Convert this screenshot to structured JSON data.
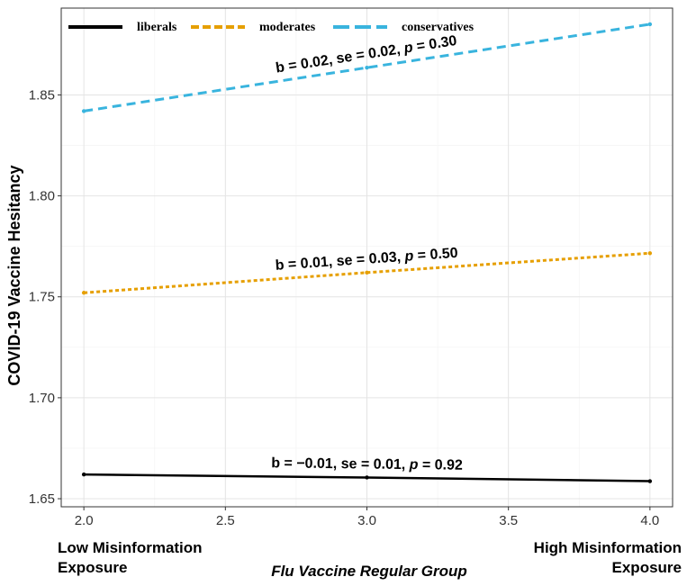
{
  "chart_data": {
    "type": "line",
    "title": "",
    "xlabel": "Flu Vaccine Regular Group",
    "ylabel": "COVID-19 Vaccine Hesitancy",
    "x": [
      2.0,
      3.0,
      4.0
    ],
    "xlim": [
      1.92,
      4.08
    ],
    "ylim": [
      1.646,
      1.893
    ],
    "x_ticks": [
      "2.0",
      "2.5",
      "3.0",
      "3.5",
      "4.0"
    ],
    "y_ticks": [
      "1.65",
      "1.70",
      "1.75",
      "1.80",
      "1.85"
    ],
    "grid": true,
    "legend_position": "top-left",
    "x_extremes": {
      "low": [
        "Low Misinformation",
        "Exposure"
      ],
      "high": [
        "High Misinformation",
        "Exposure"
      ]
    },
    "series": [
      {
        "name": "liberals",
        "values": [
          1.662,
          1.6605,
          1.6587
        ],
        "color": "#000000",
        "style": "solid",
        "annotation": [
          "b = −0.01, se = 0.01, ",
          "p",
          " = 0.92"
        ]
      },
      {
        "name": "moderates",
        "values": [
          1.752,
          1.762,
          1.7716
        ],
        "color": "#E69F00",
        "style": "dotted",
        "annotation": [
          "b = 0.01, se = 0.03, ",
          "p",
          " = 0.50"
        ]
      },
      {
        "name": "conservatives",
        "values": [
          1.842,
          1.8635,
          1.885
        ],
        "color": "#39B4DE",
        "style": "dashed",
        "annotation": [
          "b = 0.02, se = 0.02, ",
          "p",
          " = 0.30"
        ]
      }
    ]
  }
}
